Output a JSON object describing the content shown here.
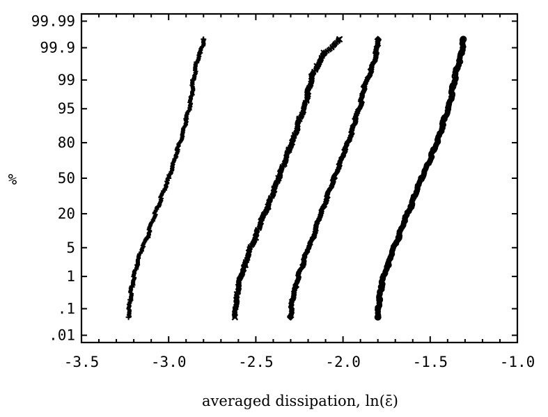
{
  "chart_data": {
    "type": "scatter",
    "title": "",
    "xlabel": "averaged dissipation, ln(ε̄)",
    "ylabel": "%",
    "xlim": [
      -3.5,
      -1.0
    ],
    "x_ticks": [
      -3.5,
      -3.0,
      -2.5,
      -2.0,
      -1.5,
      -1.0
    ],
    "x_tick_labels": [
      "-3.5",
      "-3.0",
      "-2.5",
      "-2.0",
      "-1.5",
      "-1.0"
    ],
    "y_scale": "normal-probability",
    "y_ticks": [
      0.01,
      0.1,
      1,
      5,
      20,
      50,
      80,
      95,
      99,
      99.9,
      99.99
    ],
    "y_tick_labels": [
      ".01",
      ".1",
      "1",
      "5",
      "20",
      "50",
      "80",
      "95",
      "99",
      "99.9",
      "99.99"
    ],
    "ylim": [
      0.01,
      99.99
    ],
    "grid": false,
    "legend": "none",
    "series": [
      {
        "marker": "plus",
        "points": [
          [
            -3.23,
            0.05
          ],
          [
            -3.22,
            0.2
          ],
          [
            -3.21,
            0.5
          ],
          [
            -3.18,
            2
          ],
          [
            -3.12,
            8
          ],
          [
            -3.06,
            25
          ],
          [
            -3.0,
            50
          ],
          [
            -2.95,
            75
          ],
          [
            -2.9,
            92
          ],
          [
            -2.86,
            99
          ],
          [
            -2.84,
            99.7
          ],
          [
            -2.82,
            99.85
          ],
          [
            -2.8,
            99.95
          ]
        ]
      },
      {
        "marker": "cross",
        "points": [
          [
            -2.62,
            0.05
          ],
          [
            -2.61,
            0.2
          ],
          [
            -2.6,
            0.5
          ],
          [
            -2.56,
            2
          ],
          [
            -2.5,
            8
          ],
          [
            -2.43,
            25
          ],
          [
            -2.37,
            50
          ],
          [
            -2.31,
            75
          ],
          [
            -2.25,
            92
          ],
          [
            -2.2,
            98
          ],
          [
            -2.18,
            99.2
          ],
          [
            -2.15,
            99.6
          ],
          [
            -2.11,
            99.85
          ],
          [
            -2.02,
            99.95
          ]
        ]
      },
      {
        "marker": "diamond",
        "points": [
          [
            -2.3,
            0.05
          ],
          [
            -2.29,
            0.2
          ],
          [
            -2.27,
            0.5
          ],
          [
            -2.23,
            2
          ],
          [
            -2.17,
            8
          ],
          [
            -2.11,
            25
          ],
          [
            -2.05,
            50
          ],
          [
            -1.99,
            75
          ],
          [
            -1.93,
            92
          ],
          [
            -1.88,
            98.5
          ],
          [
            -1.84,
            99.5
          ],
          [
            -1.81,
            99.85
          ],
          [
            -1.8,
            99.95
          ]
        ]
      },
      {
        "marker": "circle",
        "points": [
          [
            -1.8,
            0.05
          ],
          [
            -1.79,
            0.2
          ],
          [
            -1.78,
            0.5
          ],
          [
            -1.74,
            2
          ],
          [
            -1.68,
            8
          ],
          [
            -1.61,
            25
          ],
          [
            -1.55,
            50
          ],
          [
            -1.48,
            75
          ],
          [
            -1.42,
            92
          ],
          [
            -1.37,
            98.5
          ],
          [
            -1.35,
            99.5
          ],
          [
            -1.32,
            99.85
          ],
          [
            -1.31,
            99.95
          ]
        ]
      }
    ]
  }
}
